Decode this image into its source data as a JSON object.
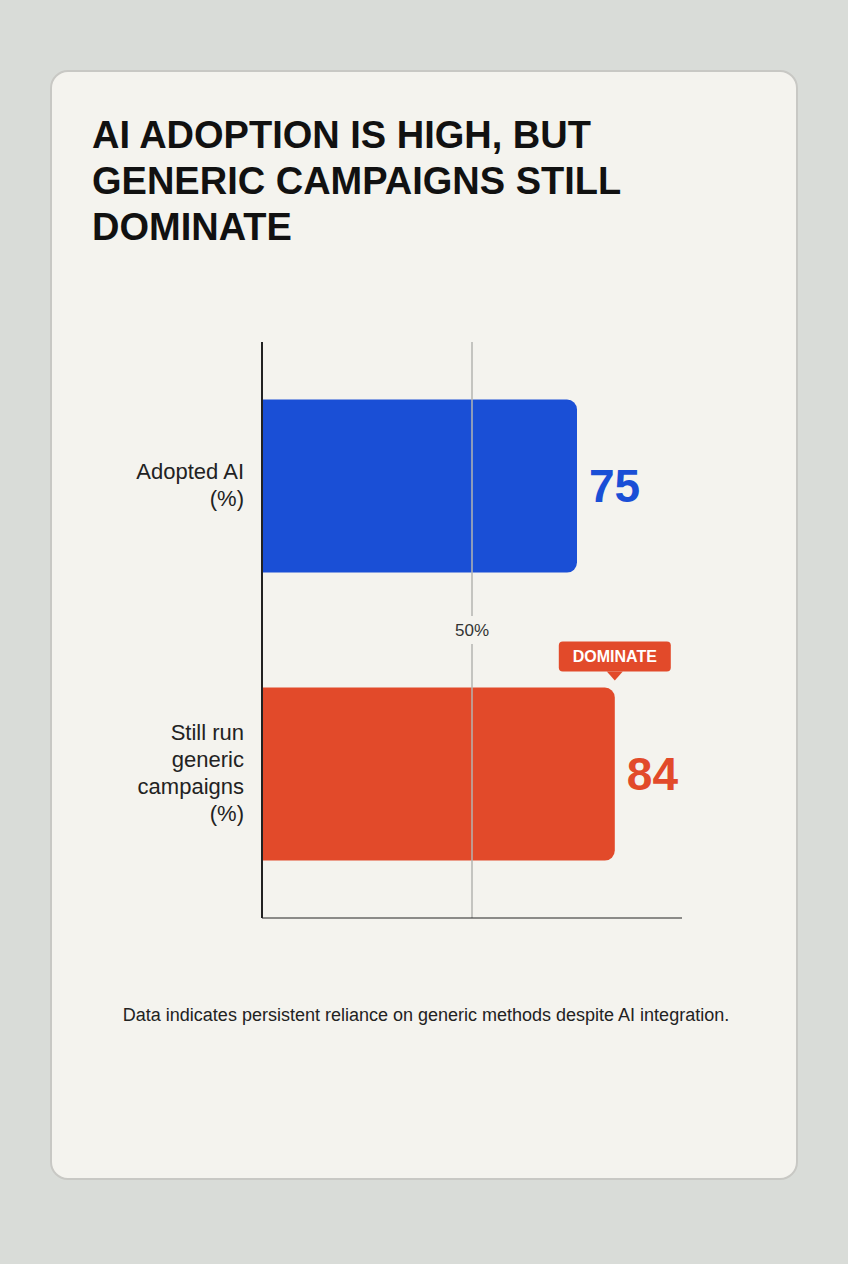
{
  "chart_data": {
    "type": "bar",
    "title": "AI ADOPTION IS HIGH, BUT GENERIC CAMPAIGNS STILL DOMINATE",
    "orientation": "horizontal",
    "categories": [
      "Adopted AI (%)",
      "Still run generic campaigns (%)"
    ],
    "values": [
      75,
      84
    ],
    "colors": [
      "#1a4fd6",
      "#e24a2a"
    ],
    "xlim": [
      0,
      100
    ],
    "grid": false,
    "data_labels": true,
    "tick_labels": "y",
    "reference_line": {
      "value": 50,
      "label": "50%"
    },
    "annotation": {
      "text": "DOMINATE",
      "category": "Still run generic campaigns (%)"
    },
    "footnote": "Data indicates persistent reliance on generic methods despite AI integration."
  }
}
